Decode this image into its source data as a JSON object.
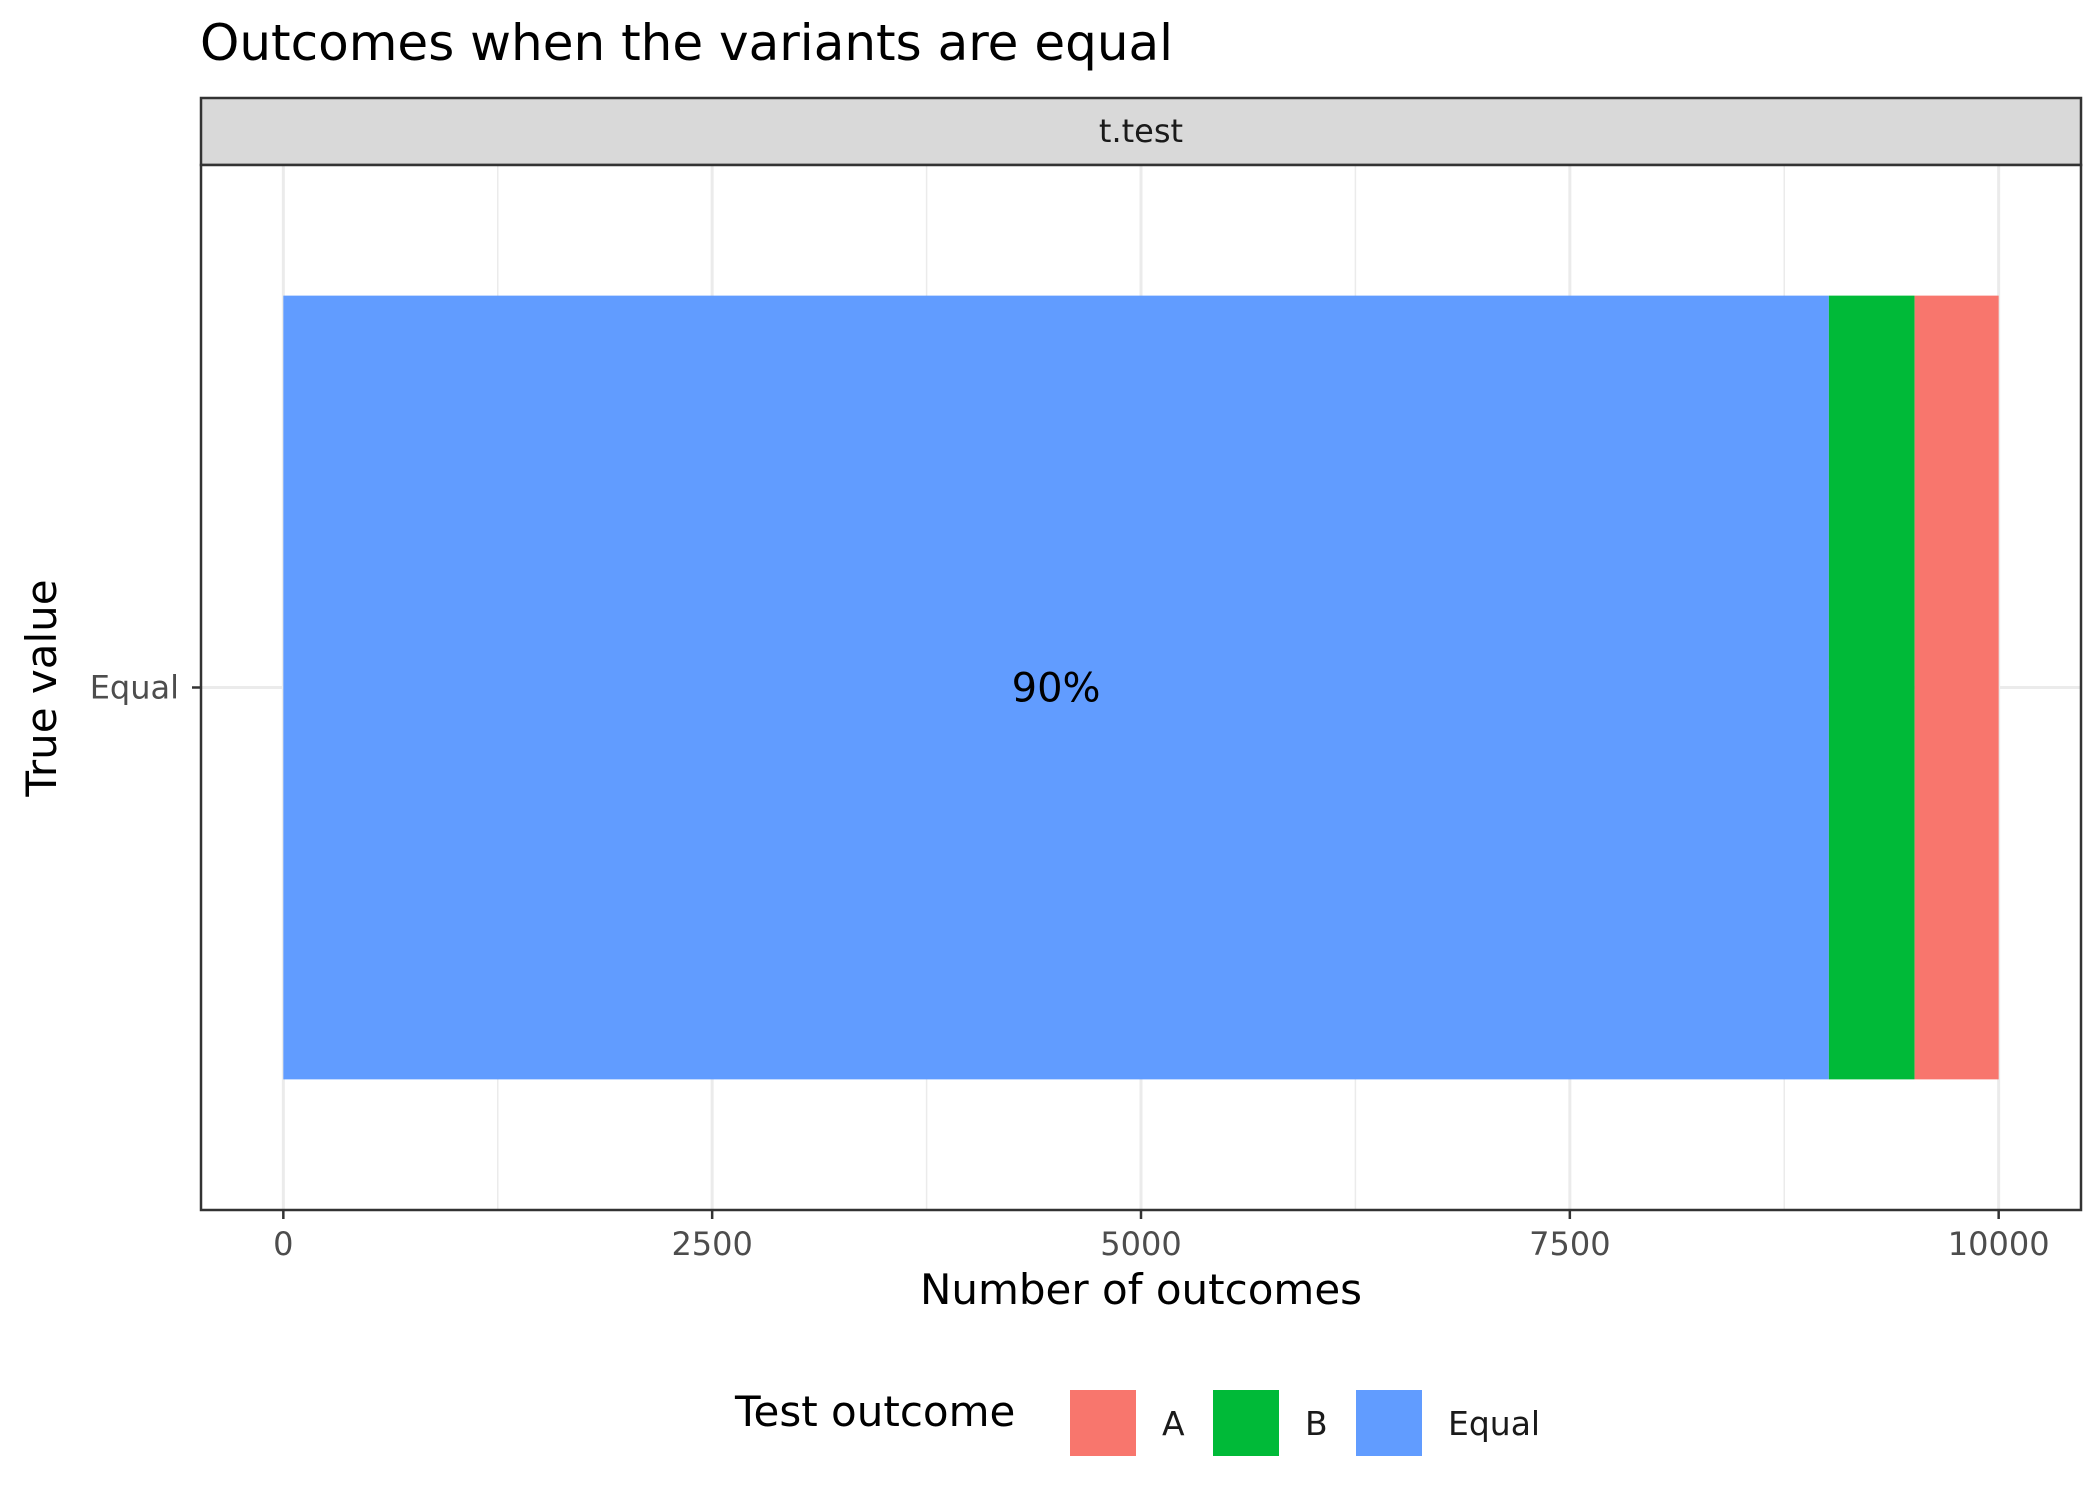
{
  "chart_data": {
    "type": "bar",
    "orientation": "horizontal",
    "stacked": true,
    "title": "Outcomes when the variants are equal",
    "facet_label": "t.test",
    "xlabel": "Number of outcomes",
    "ylabel": "True value",
    "categories": [
      "Equal"
    ],
    "xlim": [
      -480,
      10480
    ],
    "x_ticks": [
      0,
      2500,
      5000,
      7500,
      10000
    ],
    "x_tick_labels": [
      "0",
      "2500",
      "5000",
      "7500",
      "10000"
    ],
    "grid": true,
    "legend": {
      "title": "Test outcome",
      "placement": "bottom",
      "entries": [
        "A",
        "B",
        "Equal"
      ]
    },
    "stack_order": [
      "Equal",
      "B",
      "A"
    ],
    "series": [
      {
        "name": "A",
        "color": "#F8766D",
        "values": [
          490
        ]
      },
      {
        "name": "B",
        "color": "#00BA38",
        "values": [
          500
        ]
      },
      {
        "name": "Equal",
        "color": "#619CFF",
        "values": [
          9010
        ]
      }
    ],
    "annotations": [
      {
        "category": "Equal",
        "series": "Equal",
        "text": "90%"
      }
    ]
  }
}
